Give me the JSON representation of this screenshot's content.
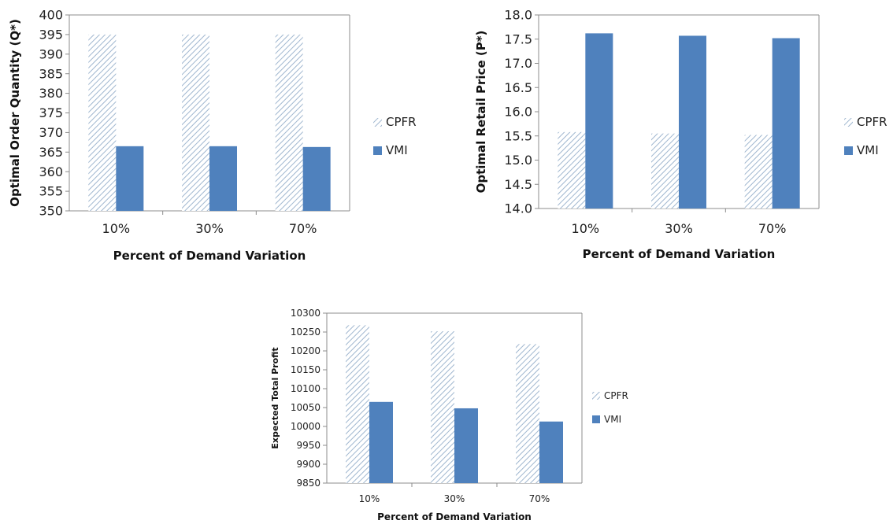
{
  "colors": {
    "vmi": "#4f81bd",
    "cpfr_hatch": "#9fb6cf",
    "axis": "#8c8c8c"
  },
  "chart_data": [
    {
      "type": "bar",
      "categories": [
        "10%",
        "30%",
        "70%"
      ],
      "series": [
        {
          "name": "CPFR",
          "values": [
            395,
            395,
            395
          ]
        },
        {
          "name": "VMI",
          "values": [
            366.5,
            366.5,
            366.3
          ]
        }
      ],
      "xlabel": "Percent of Demand Variation",
      "ylabel": "Optimal Order Quantity (Q*)",
      "ylim": [
        350,
        400
      ],
      "yticks": [
        "350",
        "355",
        "360",
        "365",
        "370",
        "375",
        "380",
        "385",
        "390",
        "395",
        "400"
      ],
      "grid": false,
      "legend": "right"
    },
    {
      "type": "bar",
      "categories": [
        "10%",
        "30%",
        "70%"
      ],
      "series": [
        {
          "name": "CPFR",
          "values": [
            15.58,
            15.55,
            15.52
          ]
        },
        {
          "name": "VMI",
          "values": [
            17.62,
            17.57,
            17.52
          ]
        }
      ],
      "xlabel": "Percent of Demand Variation",
      "ylabel": "Optimal Retail Price (P*)",
      "ylim": [
        14.0,
        18.0
      ],
      "yticks": [
        "14.0",
        "14.5",
        "15.0",
        "15.5",
        "16.0",
        "16.5",
        "17.0",
        "17.5",
        "18.0"
      ],
      "grid": false,
      "legend": "right"
    },
    {
      "type": "bar",
      "categories": [
        "10%",
        "30%",
        "70%"
      ],
      "series": [
        {
          "name": "CPFR",
          "values": [
            10268,
            10252,
            10218
          ]
        },
        {
          "name": "VMI",
          "values": [
            10065,
            10048,
            10013
          ]
        }
      ],
      "xlabel": "Percent of Demand Variation",
      "ylabel": "Expected Total Profit",
      "ylim": [
        9850,
        10300
      ],
      "yticks": [
        "9850",
        "9900",
        "9950",
        "10000",
        "10050",
        "10100",
        "10150",
        "10200",
        "10250",
        "10300"
      ],
      "grid": false,
      "legend": "right"
    }
  ]
}
